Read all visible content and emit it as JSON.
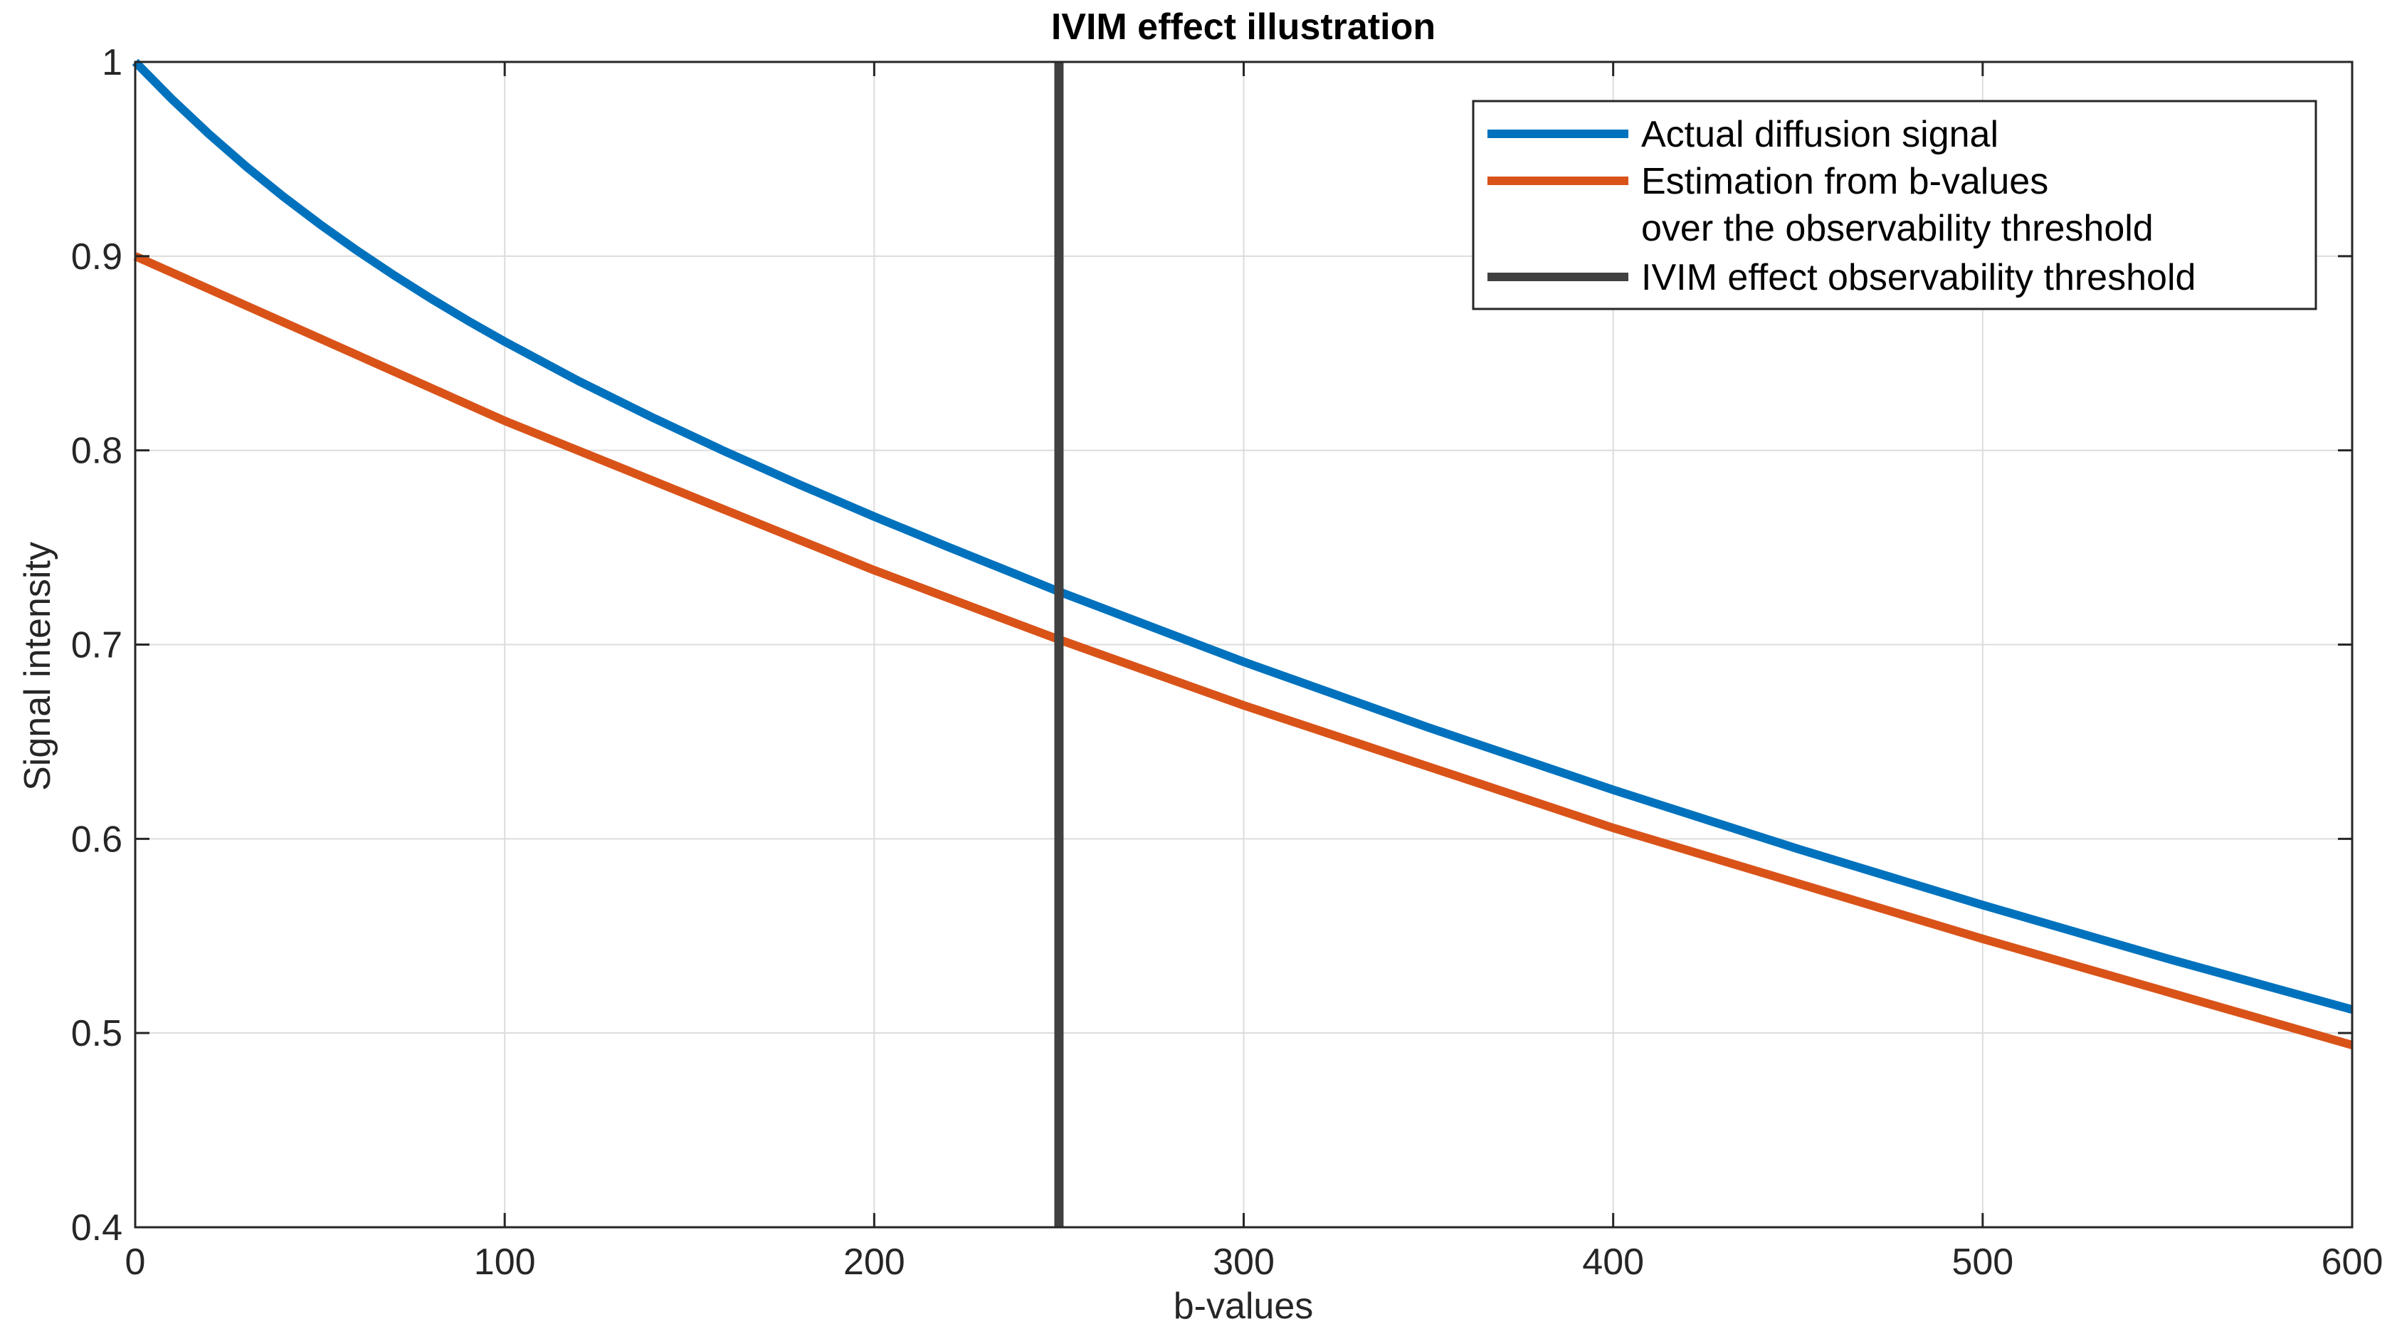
{
  "chart_data": {
    "type": "line",
    "title": "IVIM effect illustration",
    "xlabel": "b-values",
    "ylabel": "Signal intensity",
    "xlim": [
      0,
      600
    ],
    "ylim": [
      0.4,
      1
    ],
    "xticks": [
      0,
      100,
      200,
      300,
      400,
      500,
      600
    ],
    "xtick_labels": [
      "0",
      "100",
      "200",
      "300",
      "400",
      "500",
      "600"
    ],
    "yticks": [
      0.4,
      0.5,
      0.6,
      0.7,
      0.8,
      0.9,
      1
    ],
    "ytick_labels": [
      "0.4",
      "0.5",
      "0.6",
      "0.7",
      "0.8",
      "0.9",
      "1"
    ],
    "grid": true,
    "legend_position": "top-right",
    "series": [
      {
        "name": "Actual diffusion signal",
        "legend_lines": [
          "Actual diffusion signal"
        ],
        "color": "#0072BD",
        "x": [
          0,
          10,
          20,
          30,
          40,
          50,
          60,
          70,
          80,
          90,
          100,
          120,
          140,
          160,
          180,
          200,
          220,
          250,
          300,
          350,
          400,
          450,
          500,
          550,
          600
        ],
        "y": [
          1.0,
          0.9807,
          0.9628,
          0.9462,
          0.9308,
          0.9164,
          0.9029,
          0.8902,
          0.8782,
          0.8668,
          0.856,
          0.8357,
          0.8169,
          0.7991,
          0.7822,
          0.7659,
          0.7503,
          0.7273,
          0.6911,
          0.6573,
          0.6252,
          0.5948,
          0.5659,
          0.5383,
          0.5121
        ]
      },
      {
        "name": "Estimation from b-values over the observability threshold",
        "legend_lines": [
          "Estimation from b-values",
          "over the observability threshold"
        ],
        "color": "#D95319",
        "x": [
          0,
          100,
          200,
          250,
          300,
          400,
          500,
          600
        ],
        "y": [
          0.9,
          0.8152,
          0.7383,
          0.7026,
          0.6687,
          0.6056,
          0.5485,
          0.4938
        ]
      },
      {
        "name": "IVIM effect observability threshold",
        "legend_lines": [
          "IVIM effect observability threshold"
        ],
        "color": "#404040",
        "x": [
          250,
          250
        ],
        "y": [
          0.4,
          1
        ]
      }
    ]
  }
}
